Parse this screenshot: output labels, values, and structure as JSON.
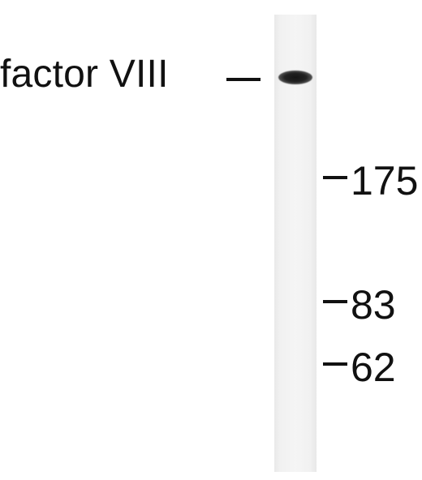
{
  "protein": {
    "label": "factor VIII"
  },
  "markers": [
    {
      "value": "175"
    },
    {
      "value": "83"
    },
    {
      "value": "62"
    }
  ]
}
